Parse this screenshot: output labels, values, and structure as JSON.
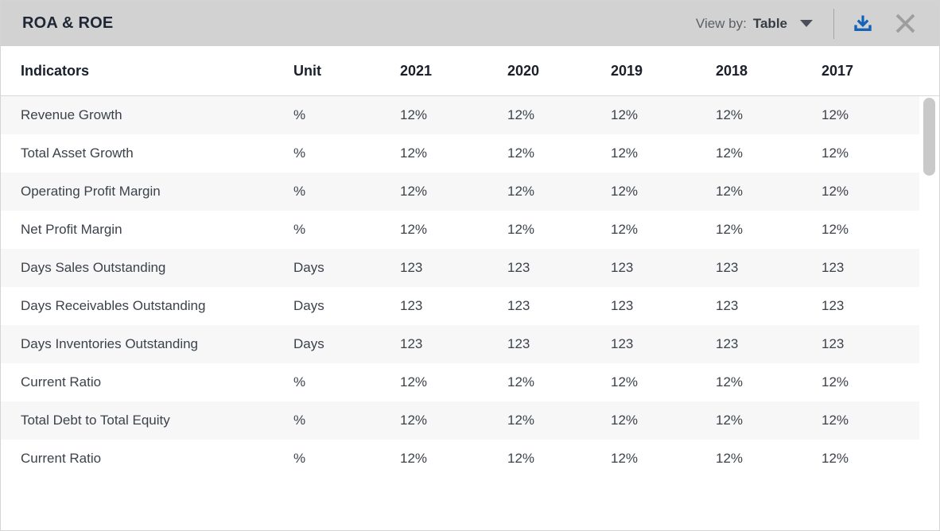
{
  "header": {
    "title": "ROA & ROE",
    "view_by_label": "View by:",
    "view_by_value": "Table"
  },
  "icons": {
    "dropdown_caret": "caret-down",
    "download": "download-tray-arrow",
    "close": "x-cross"
  },
  "colors": {
    "topbar_bg": "#d2d2d2",
    "stripe_bg": "#f7f7f8",
    "download_blue": "#1463b8",
    "close_gray": "#9e9e9e"
  },
  "table": {
    "columns": [
      "Indicators",
      "Unit",
      "2021",
      "2020",
      "2019",
      "2018",
      "2017"
    ],
    "rows": [
      {
        "label": "Revenue Growth",
        "unit": "%",
        "values": [
          "12%",
          "12%",
          "12%",
          "12%",
          "12%"
        ]
      },
      {
        "label": "Total Asset Growth",
        "unit": "%",
        "values": [
          "12%",
          "12%",
          "12%",
          "12%",
          "12%"
        ]
      },
      {
        "label": "Operating Profit Margin",
        "unit": "%",
        "values": [
          "12%",
          "12%",
          "12%",
          "12%",
          "12%"
        ]
      },
      {
        "label": "Net Profit Margin",
        "unit": "%",
        "values": [
          "12%",
          "12%",
          "12%",
          "12%",
          "12%"
        ]
      },
      {
        "label": "Days Sales Outstanding",
        "unit": "Days",
        "values": [
          "123",
          "123",
          "123",
          "123",
          "123"
        ]
      },
      {
        "label": "Days Receivables Outstanding",
        "unit": "Days",
        "values": [
          "123",
          "123",
          "123",
          "123",
          "123"
        ]
      },
      {
        "label": "Days Inventories Outstanding",
        "unit": "Days",
        "values": [
          "123",
          "123",
          "123",
          "123",
          "123"
        ]
      },
      {
        "label": "Current Ratio",
        "unit": "%",
        "values": [
          "12%",
          "12%",
          "12%",
          "12%",
          "12%"
        ]
      },
      {
        "label": "Total Debt to Total Equity",
        "unit": "%",
        "values": [
          "12%",
          "12%",
          "12%",
          "12%",
          "12%"
        ]
      },
      {
        "label": "Current Ratio",
        "unit": "%",
        "values": [
          "12%",
          "12%",
          "12%",
          "12%",
          "12%"
        ]
      }
    ]
  }
}
